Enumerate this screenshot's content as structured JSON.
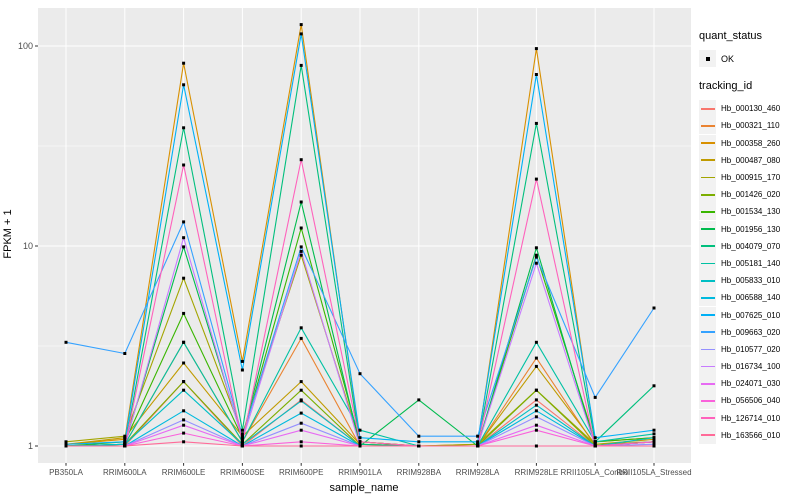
{
  "chart_data": {
    "type": "line",
    "title": "",
    "xlabel": "sample_name",
    "ylabel": "FPKM + 1",
    "y_scale": "log10",
    "y_ticks": [
      1,
      10,
      100
    ],
    "y_minor_breaks": [
      3.162,
      31.62
    ],
    "ylim": [
      0.82,
      158
    ],
    "grid": "on",
    "legend_position": "right",
    "panel_bg": "#EBEBEB",
    "grid_color": "#FFFFFF",
    "tick_label_color": "#4D4D4D",
    "point_color": "#000000",
    "categories": [
      "PB350LA",
      "RRIM600LA",
      "RRIM600LE",
      "RRIM600SE",
      "RRIM600PE",
      "RRIM901LA",
      "RRIM928BA",
      "RRIM928LA",
      "RRIM928LE",
      "RRII105LA_Control",
      "RRII105LA_Stressed"
    ],
    "series": [
      {
        "name": "Hb_000130_460",
        "color": "#F8766D",
        "values": [
          1.0,
          1.0,
          2.1,
          1.0,
          1.7,
          1.0,
          1.0,
          1.0,
          1.7,
          1.0,
          1.05
        ]
      },
      {
        "name": "Hb_000321_110",
        "color": "#EA8331",
        "values": [
          1.0,
          1.02,
          3.3,
          1.05,
          3.45,
          1.0,
          1.0,
          1.0,
          2.75,
          1.0,
          1.05
        ]
      },
      {
        "name": "Hb_000358_260",
        "color": "#D89000",
        "values": [
          1.02,
          1.08,
          82,
          2.65,
          128,
          1.05,
          1.0,
          1.02,
          97,
          1.05,
          1.1
        ]
      },
      {
        "name": "Hb_000487_080",
        "color": "#C09B00",
        "values": [
          1.02,
          1.1,
          2.6,
          1.12,
          2.1,
          1.02,
          1.0,
          1.0,
          2.5,
          1.02,
          1.08
        ]
      },
      {
        "name": "Hb_000915_170",
        "color": "#A3A500",
        "values": [
          1.05,
          1.12,
          6.9,
          1.15,
          9.0,
          1.05,
          1.0,
          1.02,
          1.9,
          1.02,
          1.05
        ]
      },
      {
        "name": "Hb_001426_020",
        "color": "#7CAE00",
        "values": [
          1.0,
          1.02,
          2.1,
          1.02,
          1.9,
          1.0,
          1.0,
          1.0,
          1.9,
          1.0,
          1.05
        ]
      },
      {
        "name": "Hb_001534_130",
        "color": "#39B600",
        "values": [
          1.0,
          1.05,
          4.6,
          1.1,
          12.3,
          1.05,
          1.0,
          1.0,
          9.0,
          1.05,
          1.1
        ]
      },
      {
        "name": "Hb_001956_130",
        "color": "#00BB4E",
        "values": [
          1.0,
          1.02,
          9.9,
          1.1,
          16.6,
          1.0,
          1.7,
          1.0,
          9.8,
          1.0,
          1.05
        ]
      },
      {
        "name": "Hb_004079_070",
        "color": "#00BF7D",
        "values": [
          1.0,
          1.0,
          39,
          1.2,
          80,
          1.02,
          1.0,
          1.0,
          41,
          1.05,
          2.0
        ]
      },
      {
        "name": "Hb_005181_140",
        "color": "#00C1A3",
        "values": [
          1.0,
          1.02,
          3.3,
          1.05,
          3.9,
          1.2,
          1.0,
          1.0,
          3.3,
          1.05,
          1.15
        ]
      },
      {
        "name": "Hb_005833_010",
        "color": "#00BFC4",
        "values": [
          1.0,
          1.02,
          1.9,
          1.02,
          1.68,
          1.0,
          1.0,
          1.0,
          1.6,
          1.0,
          1.1
        ]
      },
      {
        "name": "Hb_006588_140",
        "color": "#00BADE",
        "values": [
          1.0,
          1.0,
          1.5,
          1.0,
          1.46,
          1.0,
          1.0,
          1.0,
          1.5,
          1.0,
          1.05
        ]
      },
      {
        "name": "Hb_007625_010",
        "color": "#00B0F6",
        "values": [
          1.02,
          1.05,
          64,
          2.4,
          115,
          1.1,
          1.05,
          1.05,
          72,
          1.1,
          1.2
        ]
      },
      {
        "name": "Hb_009663_020",
        "color": "#35A2FF",
        "values": [
          3.3,
          2.9,
          13.2,
          1.12,
          9.9,
          2.3,
          1.12,
          1.12,
          8.8,
          1.75,
          4.9
        ]
      },
      {
        "name": "Hb_010577_020",
        "color": "#9590FF",
        "values": [
          1.0,
          1.0,
          1.35,
          1.0,
          1.3,
          1.0,
          1.0,
          1.0,
          1.4,
          1.0,
          1.02
        ]
      },
      {
        "name": "Hb_016734_100",
        "color": "#C77CFF",
        "values": [
          1.0,
          1.0,
          11.0,
          1.07,
          9.4,
          1.0,
          1.0,
          1.0,
          8.2,
          1.0,
          1.05
        ]
      },
      {
        "name": "Hb_024071_030",
        "color": "#E76BF3",
        "values": [
          1.0,
          1.0,
          1.27,
          1.0,
          1.2,
          1.0,
          1.0,
          1.0,
          1.27,
          1.0,
          1.0
        ]
      },
      {
        "name": "Hb_056506_040",
        "color": "#FA62DB",
        "values": [
          1.0,
          1.0,
          1.16,
          1.0,
          1.05,
          1.0,
          1.0,
          1.0,
          1.2,
          1.0,
          1.0
        ]
      },
      {
        "name": "Hb_126714_010",
        "color": "#FF62BC",
        "values": [
          1.0,
          1.0,
          25.4,
          1.05,
          27,
          1.05,
          1.0,
          1.0,
          21.6,
          1.0,
          1.05
        ]
      },
      {
        "name": "Hb_163566_010",
        "color": "#FF6A98",
        "values": [
          1.0,
          1.0,
          1.05,
          1.0,
          1.0,
          1.0,
          1.0,
          1.0,
          1.0,
          1.0,
          1.0
        ]
      }
    ]
  },
  "legend": {
    "quant_title": "quant_status",
    "quant_items": [
      {
        "label": "OK",
        "symbol": "point"
      }
    ],
    "tracking_title": "tracking_id"
  }
}
